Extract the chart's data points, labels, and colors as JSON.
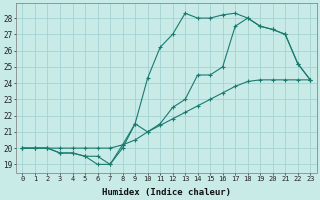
{
  "xlabel": "Humidex (Indice chaleur)",
  "background_color": "#c8ebe8",
  "grid_color": "#9ecece",
  "line_color": "#1a7a6e",
  "xlim": [
    -0.5,
    23.5
  ],
  "ylim": [
    18.5,
    28.9
  ],
  "xticks": [
    0,
    1,
    2,
    3,
    4,
    5,
    6,
    7,
    8,
    9,
    10,
    11,
    12,
    13,
    14,
    15,
    16,
    17,
    18,
    19,
    20,
    21,
    22,
    23
  ],
  "yticks": [
    19,
    20,
    21,
    22,
    23,
    24,
    25,
    26,
    27,
    28
  ],
  "line1_x": [
    0,
    1,
    2,
    3,
    4,
    5,
    6,
    7,
    8,
    9,
    10,
    11,
    12,
    13,
    14,
    15,
    16,
    17,
    18,
    19,
    20,
    21,
    22,
    23
  ],
  "line1_y": [
    20.0,
    20.0,
    20.0,
    20.0,
    20.0,
    20.0,
    20.0,
    20.0,
    20.2,
    20.5,
    21.0,
    21.4,
    21.8,
    22.2,
    22.6,
    23.0,
    23.4,
    23.8,
    24.1,
    24.2,
    24.2,
    24.2,
    24.2,
    24.2
  ],
  "line2_x": [
    0,
    1,
    2,
    3,
    4,
    5,
    6,
    7,
    8,
    9,
    10,
    11,
    12,
    13,
    14,
    15,
    16,
    17,
    18,
    19,
    20,
    21,
    22,
    23
  ],
  "line2_y": [
    20.0,
    20.0,
    20.0,
    19.7,
    19.7,
    19.5,
    19.5,
    19.0,
    20.0,
    21.5,
    21.0,
    21.5,
    22.5,
    23.0,
    24.5,
    24.5,
    25.0,
    27.5,
    28.0,
    27.5,
    27.3,
    27.0,
    25.2,
    24.2
  ],
  "line3_x": [
    0,
    1,
    2,
    3,
    4,
    5,
    6,
    7,
    8,
    9,
    10,
    11,
    12,
    13,
    14,
    15,
    16,
    17,
    18,
    19,
    20,
    21,
    22,
    23
  ],
  "line3_y": [
    20.0,
    20.0,
    20.0,
    19.7,
    19.7,
    19.5,
    19.0,
    19.0,
    20.2,
    21.5,
    24.3,
    26.2,
    27.0,
    28.3,
    28.0,
    28.0,
    28.2,
    28.3,
    28.0,
    27.5,
    27.3,
    27.0,
    25.2,
    24.2
  ]
}
